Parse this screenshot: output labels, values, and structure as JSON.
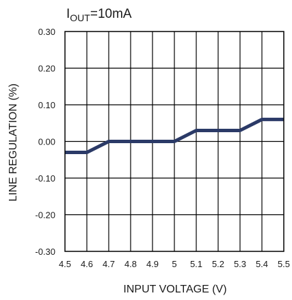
{
  "chart_data": {
    "type": "line",
    "title": {
      "main": "I",
      "sub": "OUT",
      "rest": "=10mA"
    },
    "xlabel": "INPUT VOLTAGE (V)",
    "ylabel": "LINE REGULATION (%)",
    "xlim": [
      4.5,
      5.5
    ],
    "ylim": [
      -0.3,
      0.3
    ],
    "x_ticks": [
      "4.5",
      "4.6",
      "4.7",
      "4.8",
      "4.9",
      "5",
      "5.1",
      "5.2",
      "5.3",
      "5.4",
      "5.5"
    ],
    "y_ticks": [
      "0.30",
      "0.20",
      "0.10",
      "0.00",
      "-0.10",
      "-0.20",
      "-0.30"
    ],
    "grid": true,
    "series": [
      {
        "color": "#2b3a67",
        "x": [
          4.5,
          4.6,
          4.7,
          4.8,
          4.9,
          5.0,
          5.1,
          5.2,
          5.3,
          5.4,
          5.5
        ],
        "y": [
          -0.03,
          -0.03,
          0.0,
          0.0,
          0.0,
          0.0,
          0.03,
          0.03,
          0.03,
          0.06,
          0.06
        ]
      }
    ]
  }
}
